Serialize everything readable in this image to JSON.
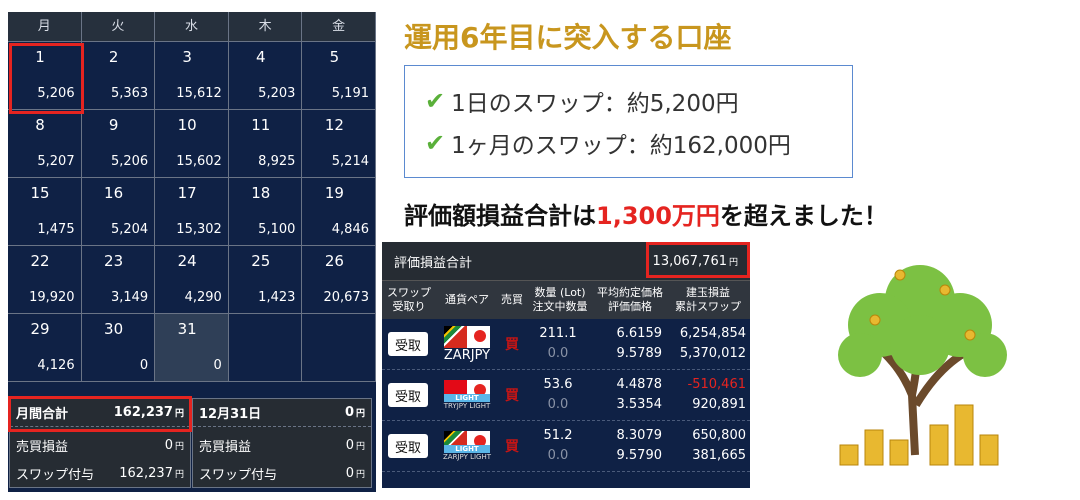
{
  "calendar": {
    "weekdays": [
      "月",
      "火",
      "水",
      "木",
      "金"
    ],
    "days": [
      {
        "d": "1",
        "v": "5,206"
      },
      {
        "d": "2",
        "v": "5,363"
      },
      {
        "d": "3",
        "v": "15,612"
      },
      {
        "d": "4",
        "v": "5,203"
      },
      {
        "d": "5",
        "v": "5,191"
      },
      {
        "d": "8",
        "v": "5,207"
      },
      {
        "d": "9",
        "v": "5,206"
      },
      {
        "d": "10",
        "v": "15,602"
      },
      {
        "d": "11",
        "v": "8,925"
      },
      {
        "d": "12",
        "v": "5,214"
      },
      {
        "d": "15",
        "v": "1,475"
      },
      {
        "d": "16",
        "v": "5,204"
      },
      {
        "d": "17",
        "v": "15,302"
      },
      {
        "d": "18",
        "v": "5,100"
      },
      {
        "d": "19",
        "v": "4,846"
      },
      {
        "d": "22",
        "v": "19,920"
      },
      {
        "d": "23",
        "v": "3,149"
      },
      {
        "d": "24",
        "v": "4,290"
      },
      {
        "d": "25",
        "v": "1,423"
      },
      {
        "d": "26",
        "v": "20,673"
      },
      {
        "d": "29",
        "v": "4,126"
      },
      {
        "d": "30",
        "v": "0"
      },
      {
        "d": "31",
        "v": "0"
      },
      {
        "d": "",
        "v": ""
      },
      {
        "d": "",
        "v": ""
      }
    ]
  },
  "monthly": {
    "label": "月間合計",
    "value": "162,237",
    "pl_label": "売買損益",
    "pl": "0",
    "swap_label": "スワップ付与",
    "swap": "162,237",
    "yen": "円"
  },
  "day": {
    "label": "12月31日",
    "value": "0",
    "pl_label": "売買損益",
    "pl": "0",
    "swap_label": "スワップ付与",
    "swap": "0"
  },
  "title": "運用6年目に突入する口座",
  "points": [
    "1日のスワップ：約5,200円",
    "1ヶ月のスワップ：約162,000円"
  ],
  "headline": {
    "pre": "評価額損益合計は",
    "red": "1,300万円",
    "post": "を超えました！"
  },
  "positions": {
    "total_label": "評価損益合計",
    "total": "13,067,761",
    "yen": "円",
    "headers": [
      [
        "スワップ",
        "受取り"
      ],
      [
        "通貨ペア",
        ""
      ],
      [
        "売買",
        ""
      ],
      [
        "数量 (Lot)",
        "注文中数量"
      ],
      [
        "平均約定価格",
        "評価価格"
      ],
      [
        "建玉損益",
        "累計スワップ"
      ]
    ],
    "rows": [
      {
        "btn": "受取",
        "pair": "ZARJPY",
        "side": "買",
        "lot": "211.1",
        "pending": "0.0",
        "avg": "6.6159",
        "eval": "9.5789",
        "pl": "6,254,854",
        "swap": "5,370,012",
        "neg": false,
        "light": false,
        "flag": "za"
      },
      {
        "btn": "受取",
        "pair": "TRYJPY LIGHT",
        "side": "買",
        "lot": "53.6",
        "pending": "0.0",
        "avg": "4.4878",
        "eval": "3.5354",
        "pl": "-510,461",
        "swap": "920,891",
        "neg": true,
        "light": true,
        "flag": "tr"
      },
      {
        "btn": "受取",
        "pair": "ZARJPY LIGHT",
        "side": "買",
        "lot": "51.2",
        "pending": "0.0",
        "avg": "8.3079",
        "eval": "9.5790",
        "pl": "650,800",
        "swap": "381,665",
        "neg": false,
        "light": true,
        "flag": "za"
      }
    ],
    "light_label": "LIGHT"
  }
}
